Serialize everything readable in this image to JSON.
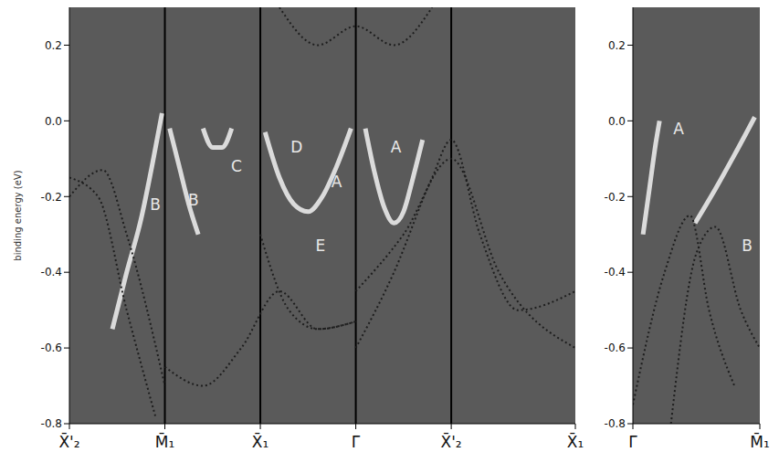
{
  "chart_data": [
    {
      "type": "line",
      "y_label": "binding energy (eV)",
      "grid": false,
      "xlim": [
        0,
        5.3
      ],
      "xticks": [
        {
          "value": 0,
          "label": "X̄'₂"
        },
        {
          "value": 1,
          "label": "M̄₁"
        },
        {
          "value": 2,
          "label": "X̄₁"
        },
        {
          "value": 3,
          "label": "Γ̄"
        },
        {
          "value": 4,
          "label": "X̄'₂"
        },
        {
          "value": 5.3,
          "label": "X̄₁"
        }
      ],
      "ylim": [
        -0.8,
        0.3
      ],
      "yticks": [
        -0.8,
        -0.6,
        -0.4,
        -0.2,
        {
          "value": 0,
          "label": "0.0"
        },
        0.2
      ],
      "series": [
        {
          "color": "#f2f2f2",
          "line_style": "solid",
          "x": [
            0.45,
            0.6,
            0.75,
            0.88,
            0.97
          ],
          "values": [
            -0.55,
            -0.4,
            -0.26,
            -0.1,
            0.02
          ]
        },
        {
          "color": "#f2f2f2",
          "line_style": "solid",
          "x": [
            1.05,
            1.15,
            1.25,
            1.35
          ],
          "values": [
            -0.02,
            -0.12,
            -0.22,
            -0.3
          ]
        },
        {
          "color": "#f2f2f2",
          "line_style": "solid",
          "x": [
            1.4,
            1.5,
            1.6,
            1.7
          ],
          "values": [
            -0.02,
            -0.07,
            -0.07,
            -0.02
          ]
        },
        {
          "color": "#f2f2f2",
          "line_style": "solid",
          "x": [
            2.05,
            2.2,
            2.35,
            2.5,
            2.65,
            2.8,
            2.95
          ],
          "values": [
            -0.03,
            -0.15,
            -0.22,
            -0.24,
            -0.2,
            -0.12,
            -0.02
          ]
        },
        {
          "color": "#f2f2f2",
          "line_style": "solid",
          "x": [
            3.1,
            3.2,
            3.3,
            3.4,
            3.5,
            3.6,
            3.7
          ],
          "values": [
            -0.02,
            -0.14,
            -0.23,
            -0.27,
            -0.24,
            -0.15,
            -0.05
          ]
        },
        {
          "color": "#1e1e1e",
          "line_style": "dotted",
          "x": [
            0,
            0.3,
            0.6,
            0.9
          ],
          "values": [
            -0.15,
            -0.2,
            -0.5,
            -0.78
          ]
        },
        {
          "color": "#1e1e1e",
          "line_style": "dotted",
          "x": [
            0,
            0.35,
            0.6,
            1
          ],
          "values": [
            -0.2,
            -0.13,
            -0.3,
            -0.7
          ]
        },
        {
          "color": "#1e1e1e",
          "line_style": "dotted",
          "x": [
            1,
            1.4,
            1.8,
            2.2,
            2.6,
            3
          ],
          "values": [
            -0.65,
            -0.7,
            -0.6,
            -0.45,
            -0.55,
            -0.53
          ]
        },
        {
          "color": "#1e1e1e",
          "line_style": "dotted",
          "x": [
            2,
            2.3,
            2.6,
            3
          ],
          "values": [
            -0.3,
            -0.5,
            -0.55,
            -0.53
          ]
        },
        {
          "color": "#1e1e1e",
          "line_style": "dotted",
          "x": [
            3,
            3.4,
            3.8,
            4,
            4.3,
            4.7,
            5.3
          ],
          "values": [
            -0.6,
            -0.4,
            -0.15,
            -0.05,
            -0.3,
            -0.5,
            -0.45
          ]
        },
        {
          "color": "#1e1e1e",
          "line_style": "dotted",
          "x": [
            3,
            3.5,
            4,
            4.5,
            5.3
          ],
          "values": [
            -0.45,
            -0.3,
            -0.1,
            -0.4,
            -0.6
          ]
        },
        {
          "color": "#1e1e1e",
          "line_style": "dotted",
          "x": [
            2.2,
            2.6,
            3,
            3.4,
            3.8
          ],
          "values": [
            0.3,
            0.2,
            0.25,
            0.2,
            0.3
          ]
        }
      ],
      "annotations": [
        {
          "text": "B",
          "x": 0.9,
          "y": -0.22
        },
        {
          "text": "B",
          "x": 1.3,
          "y": -0.21
        },
        {
          "text": "C",
          "x": 1.75,
          "y": -0.12
        },
        {
          "text": "D",
          "x": 2.38,
          "y": -0.07
        },
        {
          "text": "A",
          "x": 2.8,
          "y": -0.16
        },
        {
          "text": "E",
          "x": 2.63,
          "y": -0.33
        },
        {
          "text": "A",
          "x": 3.42,
          "y": -0.07
        }
      ]
    },
    {
      "type": "line",
      "grid": false,
      "xlim": [
        0,
        1
      ],
      "xticks": [
        {
          "value": 0,
          "label": "Γ̄"
        },
        {
          "value": 1,
          "label": "M̄₁"
        }
      ],
      "ylim": [
        -0.8,
        0.3
      ],
      "yticks": [
        -0.8,
        -0.6,
        -0.4,
        -0.2,
        {
          "value": 0,
          "label": "0.0"
        },
        0.2
      ],
      "series": [
        {
          "color": "#f2f2f2",
          "line_style": "solid",
          "x": [
            0.08,
            0.13,
            0.18,
            0.21
          ],
          "values": [
            -0.3,
            -0.18,
            -0.06,
            0.0
          ]
        },
        {
          "color": "#f2f2f2",
          "line_style": "solid",
          "x": [
            0.49,
            0.65,
            0.8,
            0.96
          ],
          "values": [
            -0.27,
            -0.18,
            -0.09,
            0.01
          ]
        },
        {
          "color": "#1e1e1e",
          "line_style": "dotted",
          "x": [
            0,
            0.25,
            0.45,
            0.6,
            0.8
          ],
          "values": [
            -0.75,
            -0.4,
            -0.25,
            -0.5,
            -0.7
          ]
        },
        {
          "color": "#1e1e1e",
          "line_style": "dotted",
          "x": [
            0.3,
            0.5,
            0.65,
            0.85,
            1
          ],
          "values": [
            -0.8,
            -0.35,
            -0.28,
            -0.5,
            -0.6
          ]
        }
      ],
      "annotations": [
        {
          "text": "A",
          "x": 0.36,
          "y": -0.02
        },
        {
          "text": "B",
          "x": 0.9,
          "y": -0.33
        }
      ]
    }
  ]
}
